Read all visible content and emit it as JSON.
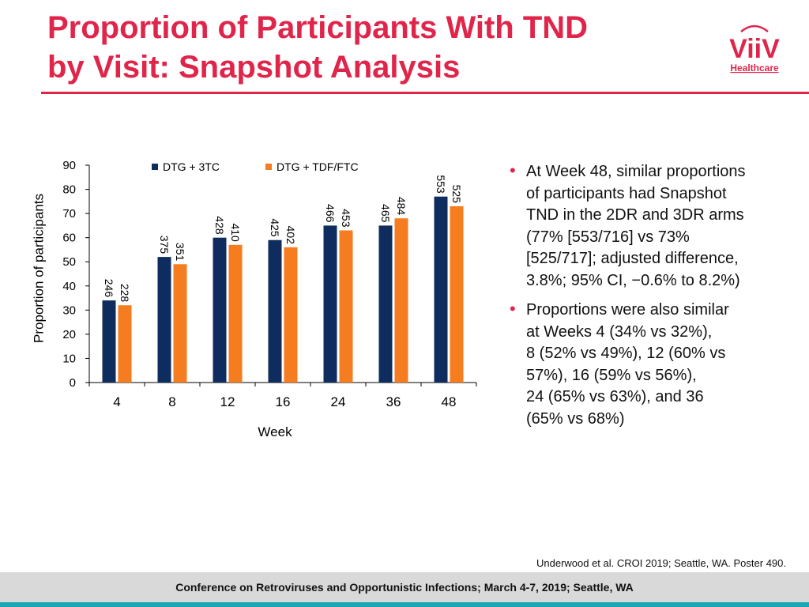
{
  "slide": {
    "title_line1": "Proportion of Participants With TND",
    "title_line2": "by Visit: Snapshot Analysis",
    "logo_name": "ViiV",
    "logo_sub": "Healthcare",
    "citation": "Underwood et al. CROI 2019; Seattle, WA. Poster 490.",
    "footer": "Conference on Retroviruses and Opportunistic Infections; March 4-7, 2019; Seattle, WA"
  },
  "colors": {
    "accent": "#e0254b",
    "series1": "#0e2d5e",
    "series2": "#f57c1f",
    "teal": "#1aa6b3"
  },
  "bullets": [
    [
      "At Week 48, similar proportions",
      "of participants had Snapshot",
      "TND in the 2DR and 3DR arms",
      "(77% [553/716] vs 73%",
      "[525/717]; adjusted difference,",
      "3.8%; 95% CI, −0.6% to 8.2%)"
    ],
    [
      "Proportions were also similar",
      "at Weeks 4 (34% vs 32%),",
      "8 (52% vs 49%), 12 (60% vs",
      "57%), 16 (59% vs 56%),",
      "24 (65% vs 63%), and 36",
      "(65% vs 68%)"
    ]
  ],
  "chart_data": {
    "type": "bar",
    "title": "",
    "xlabel": "Week",
    "ylabel": "Proportion of participants",
    "ylim": [
      0,
      90
    ],
    "yticks": [
      0,
      10,
      20,
      30,
      40,
      50,
      60,
      70,
      80,
      90
    ],
    "categories": [
      "4",
      "8",
      "12",
      "16",
      "24",
      "36",
      "48"
    ],
    "legend_position": "top",
    "series": [
      {
        "name": "DTG + 3TC",
        "values": [
          34,
          52,
          60,
          59,
          65,
          65,
          77
        ],
        "labels": [
          "246",
          "375",
          "428",
          "425",
          "466",
          "465",
          "553"
        ]
      },
      {
        "name": "DTG + TDF/FTC",
        "values": [
          32,
          49,
          57,
          56,
          63,
          68,
          73
        ],
        "labels": [
          "228",
          "351",
          "410",
          "402",
          "453",
          "484",
          "525"
        ]
      }
    ]
  }
}
